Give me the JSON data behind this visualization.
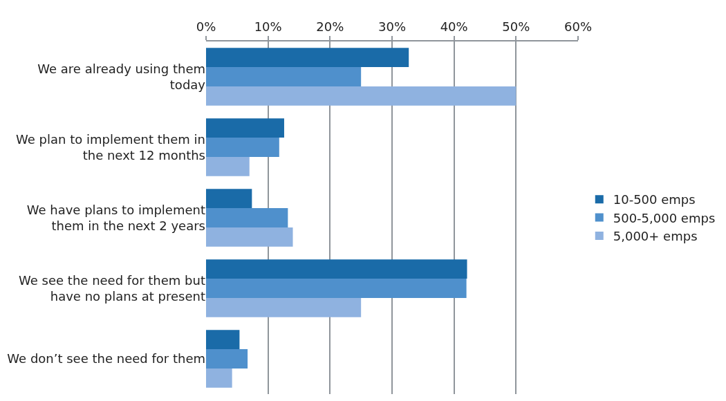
{
  "chart_data": {
    "type": "bar",
    "orientation": "horizontal",
    "categories": [
      "We are already using them today",
      "We plan to implement them in the next 12 months",
      "We have plans to implement them in the next 2 years",
      "We see the need for them but have no plans at present",
      "We don’t see the need for them"
    ],
    "series": [
      {
        "name": "10-500 emps",
        "color": "#1a6ba8",
        "values": [
          32.7,
          12.6,
          7.4,
          42.1,
          5.4
        ]
      },
      {
        "name": "500-5,000 emps",
        "color": "#4f90cc",
        "values": [
          25,
          11.8,
          13.2,
          42,
          6.7
        ]
      },
      {
        "name": "5,000+ emps",
        "color": "#8fb2e0",
        "values": [
          50,
          7,
          14,
          25,
          4.2
        ]
      }
    ],
    "xlim": [
      0,
      60
    ],
    "xticks": [
      {
        "value": 0,
        "label": "0%"
      },
      {
        "value": 10,
        "label": "10%"
      },
      {
        "value": 20,
        "label": "20%"
      },
      {
        "value": 30,
        "label": "30%"
      },
      {
        "value": 40,
        "label": "40%"
      },
      {
        "value": 50,
        "label": "50%"
      },
      {
        "value": 60,
        "label": "60%"
      }
    ],
    "grid": "x",
    "legend": "right"
  }
}
